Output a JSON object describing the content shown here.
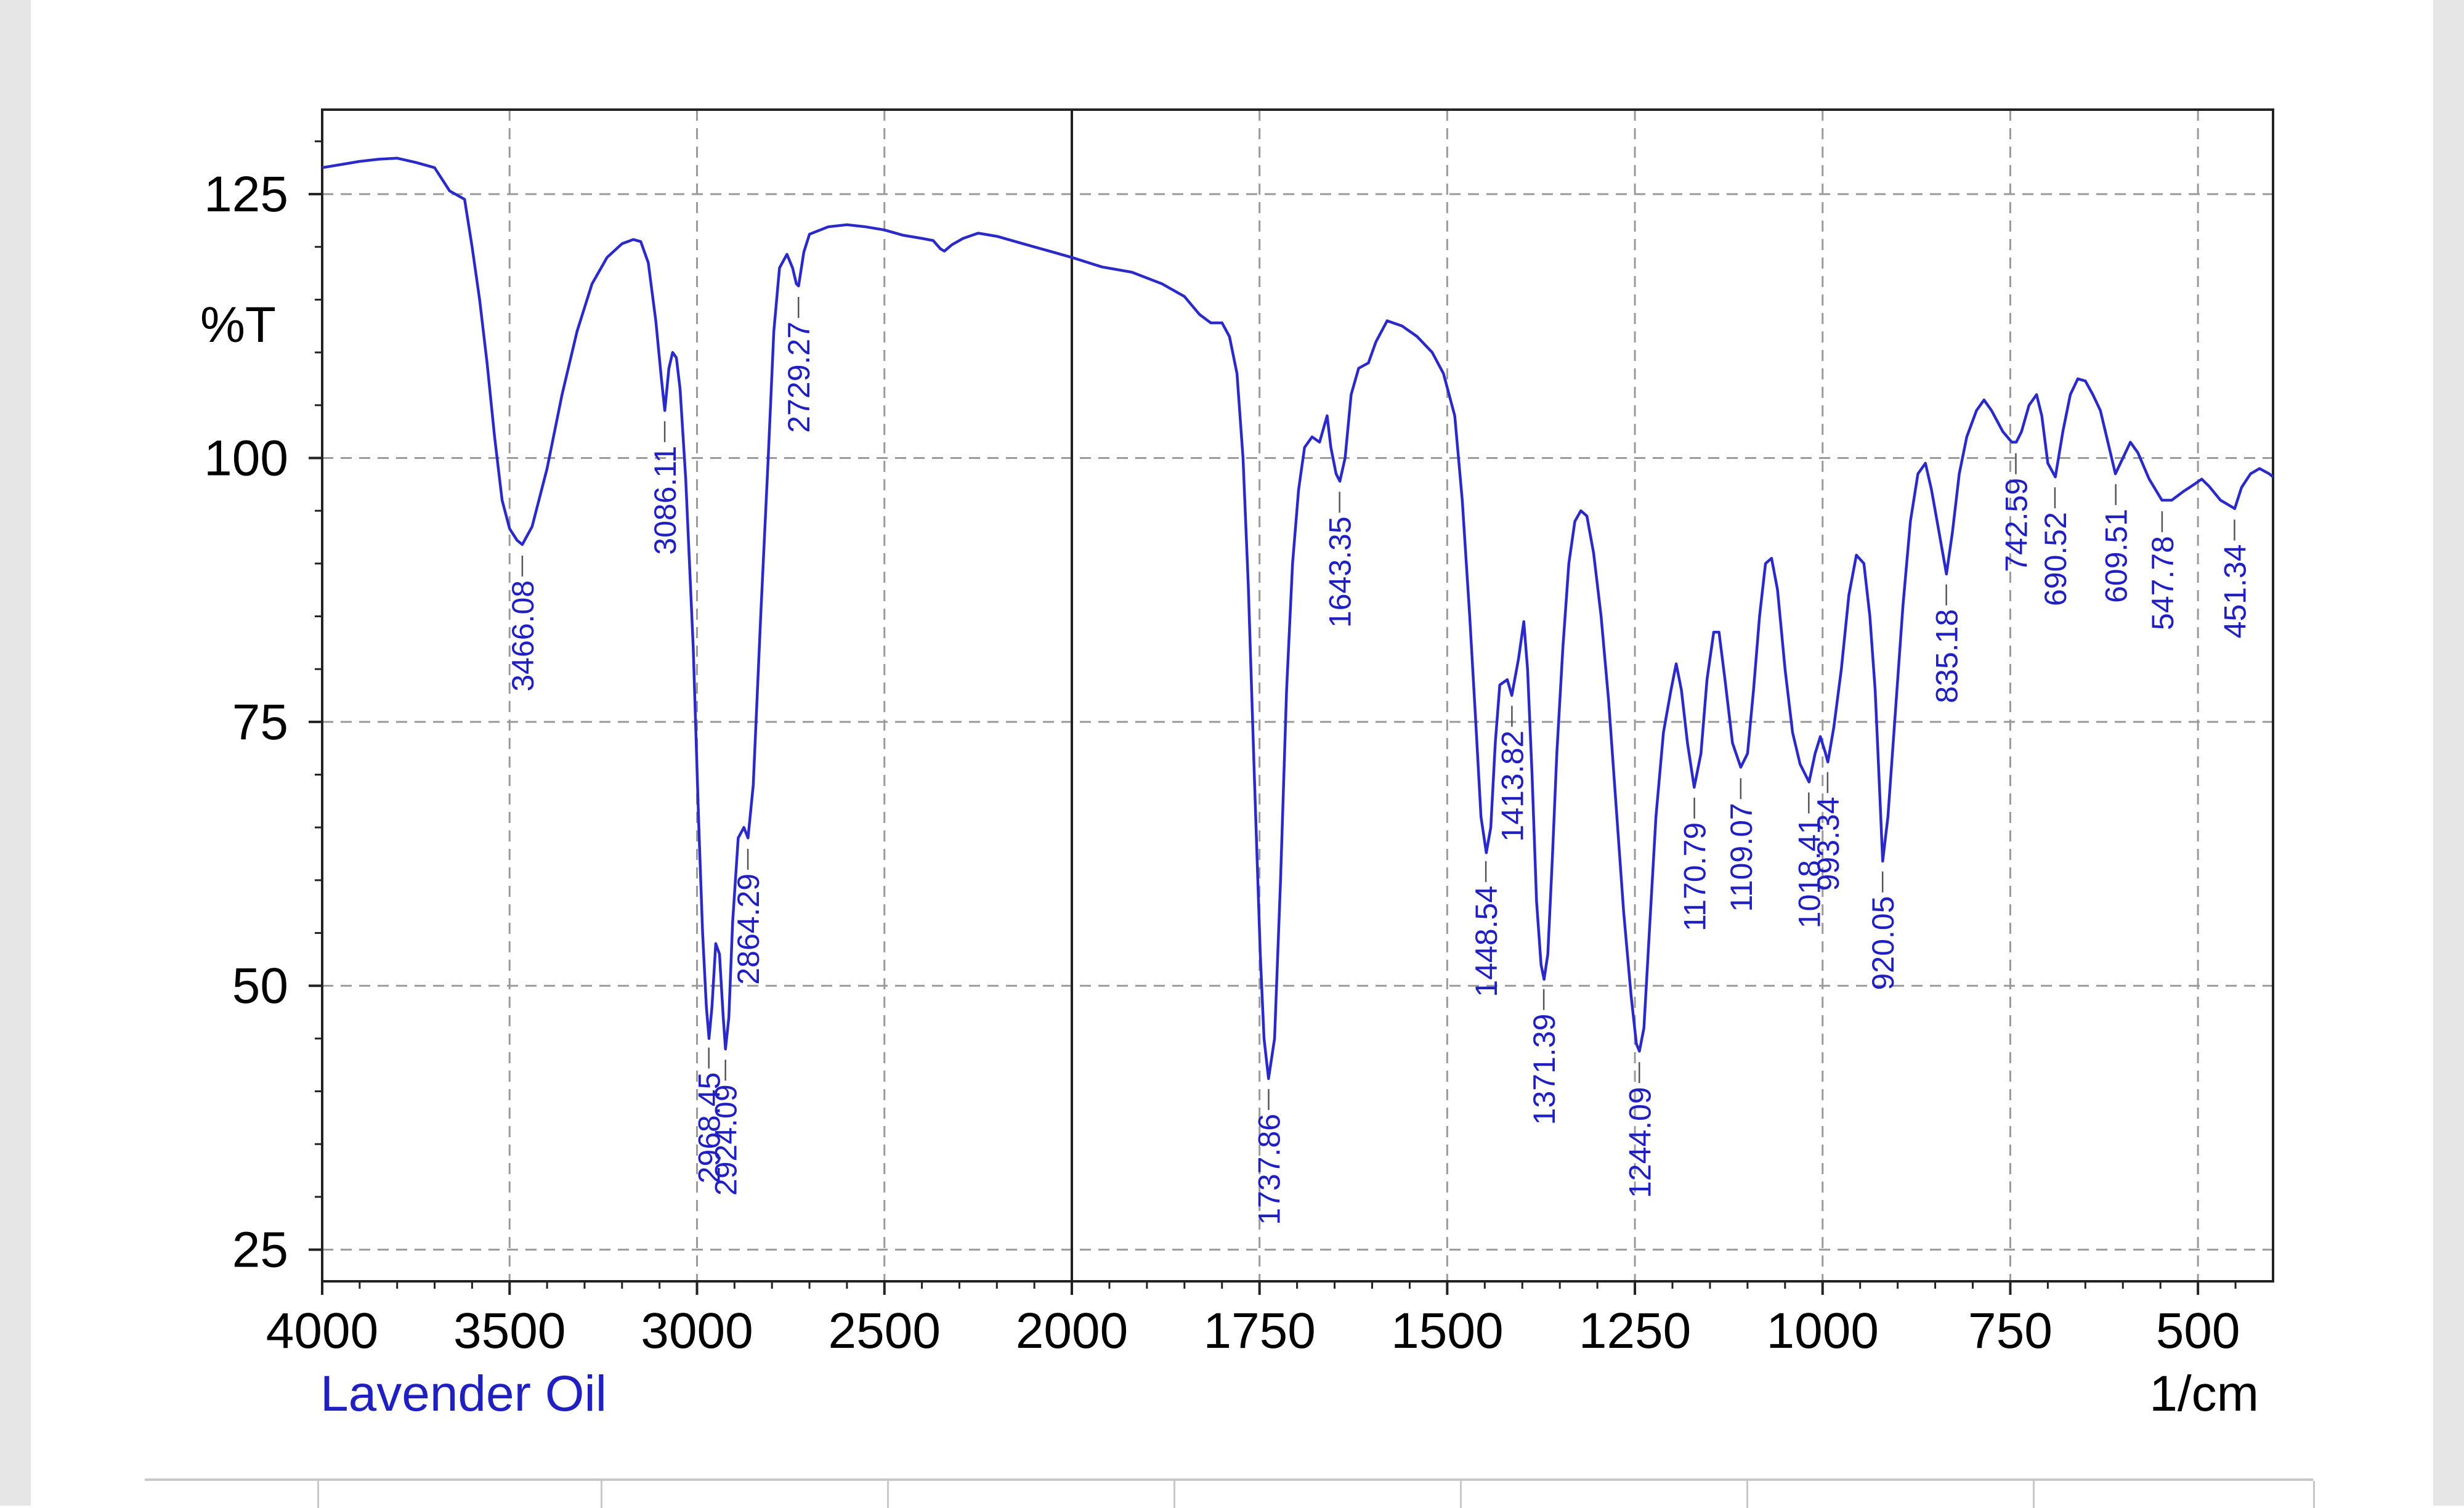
{
  "chart_data": {
    "type": "line",
    "title": "",
    "series_name": "Lavender Oil",
    "xlabel": "1/cm",
    "ylabel": "%T",
    "xlim": [
      4000,
      400
    ],
    "ylim": [
      22,
      133
    ],
    "x_ticks": [
      4000,
      3500,
      3000,
      2500,
      2000,
      1750,
      1500,
      1250,
      1000,
      750,
      500
    ],
    "x_tick_labels": [
      "4000",
      "3500",
      "3000",
      "2500",
      "2000",
      "1750",
      "1500",
      "1250",
      "1000",
      "750",
      "500"
    ],
    "y_ticks": [
      25,
      50,
      75,
      100,
      125
    ],
    "y_tick_labels": [
      "25",
      "50",
      "75",
      "100",
      "125"
    ],
    "x_scale_break": 2000,
    "grid": true,
    "line_color": "#2a2ac8",
    "label_color": "#2020c0",
    "spectrum": [
      [
        4000,
        127.5
      ],
      [
        3950,
        127.8
      ],
      [
        3900,
        128.1
      ],
      [
        3850,
        128.3
      ],
      [
        3800,
        128.4
      ],
      [
        3750,
        128.0
      ],
      [
        3700,
        127.5
      ],
      [
        3660,
        125.3
      ],
      [
        3620,
        124.5
      ],
      [
        3600,
        120
      ],
      [
        3580,
        115
      ],
      [
        3560,
        109
      ],
      [
        3540,
        102
      ],
      [
        3520,
        96
      ],
      [
        3500,
        93.3
      ],
      [
        3480,
        92.2
      ],
      [
        3466,
        91.8
      ],
      [
        3440,
        93.5
      ],
      [
        3400,
        99
      ],
      [
        3360,
        106
      ],
      [
        3320,
        112
      ],
      [
        3280,
        116.5
      ],
      [
        3240,
        119
      ],
      [
        3200,
        120.3
      ],
      [
        3170,
        120.7
      ],
      [
        3150,
        120.5
      ],
      [
        3130,
        118.5
      ],
      [
        3110,
        113
      ],
      [
        3095,
        107.5
      ],
      [
        3086,
        104.5
      ],
      [
        3075,
        108.5
      ],
      [
        3065,
        110
      ],
      [
        3055,
        109.5
      ],
      [
        3045,
        106.5
      ],
      [
        3030,
        98
      ],
      [
        3010,
        82
      ],
      [
        2995,
        65
      ],
      [
        2985,
        55
      ],
      [
        2975,
        48
      ],
      [
        2968,
        45
      ],
      [
        2960,
        48
      ],
      [
        2950,
        54
      ],
      [
        2940,
        53
      ],
      [
        2930,
        47
      ],
      [
        2924,
        44
      ],
      [
        2915,
        47
      ],
      [
        2905,
        56
      ],
      [
        2890,
        64
      ],
      [
        2875,
        65
      ],
      [
        2864,
        64
      ],
      [
        2850,
        69
      ],
      [
        2830,
        85
      ],
      [
        2810,
        100
      ],
      [
        2795,
        112
      ],
      [
        2780,
        118
      ],
      [
        2760,
        119.3
      ],
      [
        2745,
        118
      ],
      [
        2735,
        116.5
      ],
      [
        2729,
        116.3
      ],
      [
        2715,
        119.5
      ],
      [
        2700,
        121.2
      ],
      [
        2650,
        121.9
      ],
      [
        2600,
        122.1
      ],
      [
        2550,
        121.9
      ],
      [
        2500,
        121.6
      ],
      [
        2450,
        121.1
      ],
      [
        2400,
        120.8
      ],
      [
        2370,
        120.6
      ],
      [
        2350,
        119.8
      ],
      [
        2340,
        119.6
      ],
      [
        2320,
        120.2
      ],
      [
        2290,
        120.8
      ],
      [
        2250,
        121.3
      ],
      [
        2200,
        121.0
      ],
      [
        2150,
        120.5
      ],
      [
        2100,
        120.0
      ],
      [
        2050,
        119.5
      ],
      [
        2000,
        119.0
      ],
      [
        1960,
        118.1
      ],
      [
        1920,
        117.6
      ],
      [
        1880,
        116.5
      ],
      [
        1850,
        115.3
      ],
      [
        1830,
        113.6
      ],
      [
        1815,
        112.8
      ],
      [
        1800,
        112.8
      ],
      [
        1790,
        111.5
      ],
      [
        1780,
        108
      ],
      [
        1772,
        100
      ],
      [
        1765,
        88
      ],
      [
        1757,
        70
      ],
      [
        1749,
        53
      ],
      [
        1744,
        45
      ],
      [
        1738,
        41.2
      ],
      [
        1730,
        45
      ],
      [
        1722,
        60
      ],
      [
        1714,
        78
      ],
      [
        1706,
        90
      ],
      [
        1698,
        97
      ],
      [
        1690,
        101
      ],
      [
        1680,
        102
      ],
      [
        1670,
        101.5
      ],
      [
        1660,
        104
      ],
      [
        1655,
        101
      ],
      [
        1648,
        98.5
      ],
      [
        1643,
        97.8
      ],
      [
        1636,
        100
      ],
      [
        1628,
        106
      ],
      [
        1618,
        108.5
      ],
      [
        1605,
        109
      ],
      [
        1595,
        111
      ],
      [
        1580,
        113
      ],
      [
        1560,
        112.5
      ],
      [
        1540,
        111.5
      ],
      [
        1520,
        110
      ],
      [
        1505,
        108
      ],
      [
        1490,
        104
      ],
      [
        1480,
        96
      ],
      [
        1470,
        85
      ],
      [
        1462,
        75
      ],
      [
        1455,
        66
      ],
      [
        1448,
        62.6
      ],
      [
        1442,
        65
      ],
      [
        1436,
        73
      ],
      [
        1430,
        78.5
      ],
      [
        1420,
        79
      ],
      [
        1414,
        77.5
      ],
      [
        1405,
        81
      ],
      [
        1398,
        84.5
      ],
      [
        1393,
        80
      ],
      [
        1387,
        70
      ],
      [
        1381,
        58
      ],
      [
        1375,
        52
      ],
      [
        1371,
        50.6
      ],
      [
        1366,
        53
      ],
      [
        1360,
        62
      ],
      [
        1354,
        72
      ],
      [
        1346,
        82
      ],
      [
        1338,
        90
      ],
      [
        1330,
        94
      ],
      [
        1322,
        95
      ],
      [
        1314,
        94.5
      ],
      [
        1305,
        91
      ],
      [
        1295,
        85
      ],
      [
        1285,
        77
      ],
      [
        1275,
        67
      ],
      [
        1265,
        57
      ],
      [
        1255,
        49
      ],
      [
        1248,
        44.5
      ],
      [
        1244,
        43.8
      ],
      [
        1238,
        46
      ],
      [
        1230,
        56
      ],
      [
        1222,
        66
      ],
      [
        1212,
        74
      ],
      [
        1202,
        78
      ],
      [
        1195,
        80.5
      ],
      [
        1188,
        78
      ],
      [
        1180,
        73
      ],
      [
        1171,
        68.8
      ],
      [
        1162,
        72
      ],
      [
        1154,
        79
      ],
      [
        1145,
        83.5
      ],
      [
        1138,
        83.5
      ],
      [
        1130,
        79
      ],
      [
        1120,
        73
      ],
      [
        1109,
        70.7
      ],
      [
        1100,
        72
      ],
      [
        1092,
        78
      ],
      [
        1084,
        85
      ],
      [
        1076,
        90
      ],
      [
        1068,
        90.5
      ],
      [
        1060,
        87.5
      ],
      [
        1050,
        80
      ],
      [
        1040,
        74
      ],
      [
        1030,
        71
      ],
      [
        1018,
        69.3
      ],
      [
        1010,
        72
      ],
      [
        1003,
        73.6
      ],
      [
        996,
        72
      ],
      [
        993,
        71.2
      ],
      [
        985,
        74.5
      ],
      [
        975,
        80
      ],
      [
        965,
        87
      ],
      [
        955,
        90.8
      ],
      [
        945,
        90
      ],
      [
        937,
        85
      ],
      [
        930,
        78
      ],
      [
        925,
        70
      ],
      [
        920,
        61.8
      ],
      [
        913,
        66
      ],
      [
        903,
        76
      ],
      [
        893,
        86
      ],
      [
        883,
        94
      ],
      [
        873,
        98.5
      ],
      [
        863,
        99.5
      ],
      [
        855,
        97
      ],
      [
        845,
        93
      ],
      [
        835,
        89
      ],
      [
        827,
        93
      ],
      [
        818,
        98.5
      ],
      [
        808,
        102
      ],
      [
        795,
        104.5
      ],
      [
        785,
        105.5
      ],
      [
        775,
        104.5
      ],
      [
        760,
        102.5
      ],
      [
        748,
        101.5
      ],
      [
        742,
        101.5
      ],
      [
        735,
        102.5
      ],
      [
        725,
        105
      ],
      [
        715,
        106
      ],
      [
        708,
        104
      ],
      [
        700,
        99.5
      ],
      [
        690,
        98.2
      ],
      [
        680,
        102.5
      ],
      [
        670,
        106
      ],
      [
        660,
        107.5
      ],
      [
        650,
        107.3
      ],
      [
        640,
        106
      ],
      [
        630,
        104.5
      ],
      [
        620,
        101.5
      ],
      [
        610,
        98.5
      ],
      [
        600,
        100
      ],
      [
        590,
        101.5
      ],
      [
        580,
        100.5
      ],
      [
        565,
        98
      ],
      [
        548,
        96
      ],
      [
        535,
        96
      ],
      [
        520,
        96.8
      ],
      [
        505,
        97.5
      ],
      [
        495,
        98
      ],
      [
        485,
        97.3
      ],
      [
        470,
        96
      ],
      [
        458,
        95.5
      ],
      [
        451,
        95.2
      ],
      [
        442,
        97.2
      ],
      [
        430,
        98.5
      ],
      [
        418,
        99
      ],
      [
        405,
        98.5
      ],
      [
        400,
        98.2
      ]
    ],
    "peaks": [
      {
        "x": 3466.08,
        "label": "3466.08"
      },
      {
        "x": 3086.11,
        "label": "3086.11"
      },
      {
        "x": 2968.45,
        "label": "2968.45"
      },
      {
        "x": 2924.09,
        "label": "2924.09"
      },
      {
        "x": 2864.29,
        "label": "2864.29"
      },
      {
        "x": 2729.27,
        "label": "2729.27"
      },
      {
        "x": 1737.86,
        "label": "1737.86"
      },
      {
        "x": 1643.35,
        "label": "1643.35"
      },
      {
        "x": 1448.54,
        "label": "1448.54"
      },
      {
        "x": 1413.82,
        "label": "1413.82"
      },
      {
        "x": 1371.39,
        "label": "1371.39"
      },
      {
        "x": 1244.09,
        "label": "1244.09"
      },
      {
        "x": 1170.79,
        "label": "1170.79"
      },
      {
        "x": 1109.07,
        "label": "1109.07"
      },
      {
        "x": 1018.41,
        "label": "1018.41"
      },
      {
        "x": 993.34,
        "label": "993.34"
      },
      {
        "x": 920.05,
        "label": "920.05"
      },
      {
        "x": 835.18,
        "label": "835.18"
      },
      {
        "x": 742.59,
        "label": "742.59"
      },
      {
        "x": 690.52,
        "label": "690.52"
      },
      {
        "x": 609.51,
        "label": "609.51"
      },
      {
        "x": 547.78,
        "label": "547.78"
      },
      {
        "x": 451.34,
        "label": "451.34"
      }
    ]
  }
}
